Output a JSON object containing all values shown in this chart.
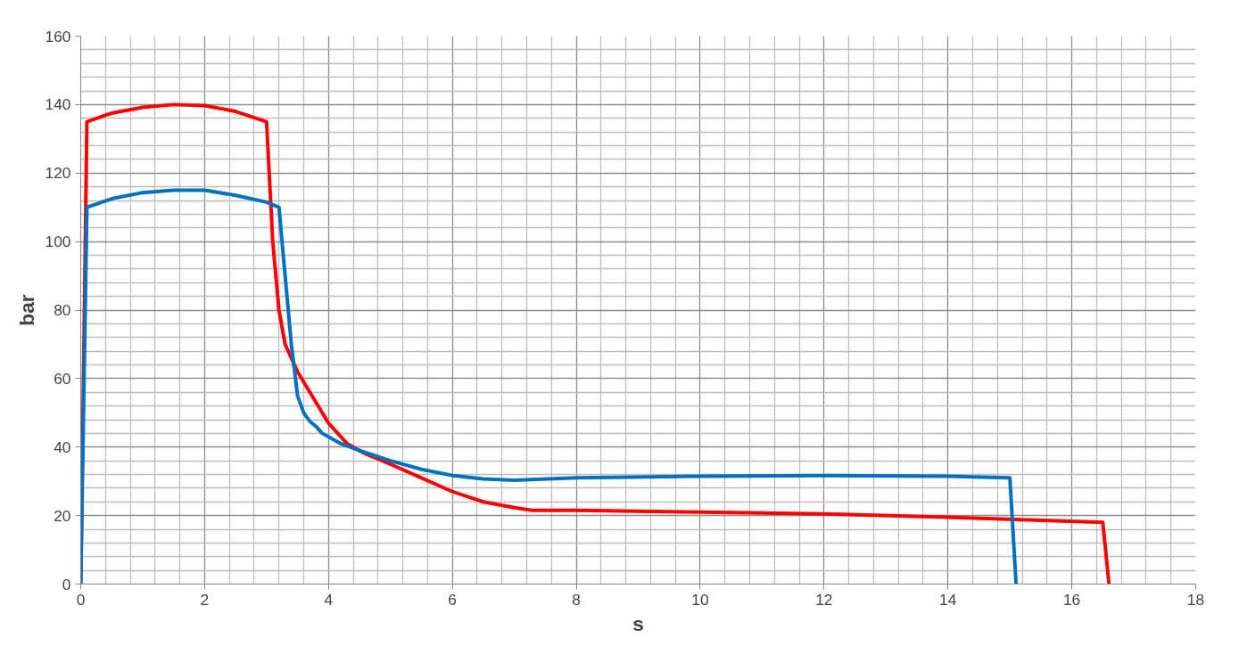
{
  "chart_data": {
    "type": "line",
    "xlabel": "s",
    "ylabel": "bar",
    "xlim": [
      0,
      18
    ],
    "xticks": [
      0,
      2,
      4,
      6,
      8,
      10,
      12,
      14,
      16,
      18
    ],
    "ylim": [
      0,
      160
    ],
    "yticks": [
      0,
      20,
      40,
      60,
      80,
      100,
      120,
      140,
      160
    ],
    "grid": true,
    "marker": "none",
    "line_style": "solid",
    "series": [
      {
        "color": "#ff0000",
        "x": [
          0,
          0.1,
          0.5,
          1,
          1.5,
          2,
          2.5,
          3,
          3.1,
          3.2,
          3.3,
          3.5,
          3.8,
          4,
          4.3,
          4.6,
          5,
          5.5,
          6,
          6.5,
          7,
          7.3,
          8,
          10,
          12,
          14,
          16.5,
          16.6
        ],
        "values": [
          0,
          135,
          137.5,
          139.2,
          140,
          139.7,
          138,
          135,
          100,
          80,
          70,
          62,
          53,
          47,
          41,
          38,
          35,
          31,
          27,
          24,
          22.3,
          21.5,
          21.5,
          21,
          20.5,
          19.5,
          18,
          0
        ]
      },
      {
        "color": "#0070c0",
        "x": [
          0,
          0.1,
          0.5,
          1,
          1.5,
          2,
          2.5,
          3,
          3.2,
          3.3,
          3.4,
          3.5,
          3.6,
          3.7,
          3.8,
          3.9,
          4.2,
          4.5,
          5,
          5.5,
          6,
          6.5,
          7,
          8,
          10,
          12,
          14,
          15,
          15.1
        ],
        "values": [
          0,
          110,
          112.5,
          114.3,
          115,
          115,
          113.5,
          111.5,
          110,
          90,
          70,
          55,
          50,
          47.5,
          46,
          44,
          41,
          39,
          36,
          33.5,
          31.7,
          30.7,
          30.3,
          31,
          31.5,
          31.7,
          31.5,
          31,
          0
        ]
      }
    ]
  }
}
